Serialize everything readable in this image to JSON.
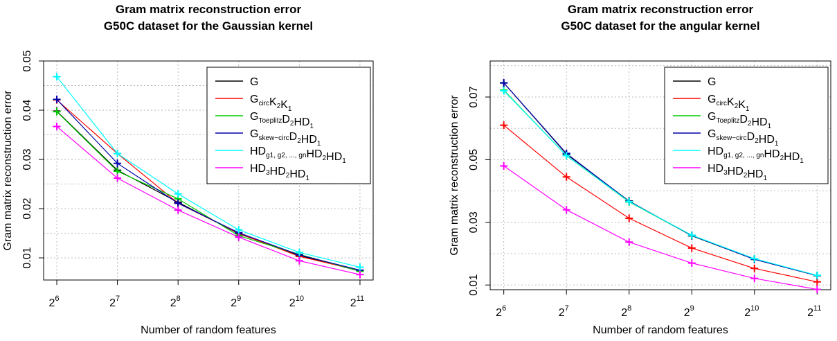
{
  "chart_data": [
    {
      "type": "line",
      "title_lines": [
        "Gram matrix reconstruction error",
        "G50C dataset for the Gaussian kernel"
      ],
      "xlabel": "Number of random features",
      "ylabel": "Gram matrix reconstruction error",
      "x": [
        6,
        7,
        8,
        9,
        10,
        11
      ],
      "x_tick_base": "2",
      "x_tick_exponents": [
        "6",
        "7",
        "8",
        "9",
        "10",
        "11"
      ],
      "ylim": [
        0.0055,
        0.05
      ],
      "y_ticks": [
        0.01,
        0.02,
        0.03,
        0.04,
        0.05
      ],
      "y_tick_labels": [
        "0.01",
        "0.02",
        "0.03",
        "0.04",
        "0.05"
      ],
      "grid": true,
      "legend_position": "top-right",
      "series": [
        {
          "legend": [
            [
              "G",
              ""
            ]
          ],
          "color": "#000000",
          "values": [
            0.0398,
            0.0278,
            0.0213,
            0.0149,
            0.0105,
            0.0073
          ]
        },
        {
          "legend": [
            [
              "G",
              "circ"
            ],
            [
              "K",
              "2"
            ],
            [
              "K",
              "1"
            ]
          ],
          "color": "#ff0000",
          "values": [
            0.0421,
            0.0312,
            0.0211,
            0.015,
            0.0103,
            0.0074
          ]
        },
        {
          "legend": [
            [
              "G",
              "Toeplitz"
            ],
            [
              "D",
              "2"
            ],
            [
              "HD",
              "1"
            ]
          ],
          "color": "#00cc00",
          "values": [
            0.0397,
            0.0276,
            0.022,
            0.0145,
            0.0107,
            0.0073
          ]
        },
        {
          "legend": [
            [
              "G",
              "skew−circ"
            ],
            [
              "D",
              "2"
            ],
            [
              "HD",
              "1"
            ]
          ],
          "color": "#0000aa",
          "values": [
            0.0422,
            0.0292,
            0.0211,
            0.0151,
            0.0106,
            0.0075
          ]
        },
        {
          "legend": [
            [
              "HD",
              "g1, g2, ..., gn"
            ],
            [
              "HD",
              "2"
            ],
            [
              "HD",
              "1"
            ]
          ],
          "color": "#00ffff",
          "values": [
            0.0468,
            0.0312,
            0.023,
            0.0157,
            0.0111,
            0.0081
          ]
        },
        {
          "legend": [
            [
              "HD",
              "3"
            ],
            [
              "HD",
              "2"
            ],
            [
              "HD",
              "1"
            ]
          ],
          "color": "#ff00ff",
          "values": [
            0.0367,
            0.0262,
            0.0197,
            0.0142,
            0.0094,
            0.0066
          ]
        }
      ]
    },
    {
      "type": "line",
      "title_lines": [
        "Gram matrix reconstruction error",
        "G50C dataset for the angular kernel"
      ],
      "xlabel": "Number of random features",
      "ylabel": "Gram matrix reconstruction error",
      "x": [
        6,
        7,
        8,
        9,
        10,
        11
      ],
      "x_tick_base": "2",
      "x_tick_exponents": [
        "6",
        "7",
        "8",
        "9",
        "10",
        "11"
      ],
      "ylim": [
        0.0085,
        0.0815
      ],
      "y_ticks": [
        0.01,
        0.03,
        0.05,
        0.07
      ],
      "y_tick_labels": [
        "0.01",
        "0.03",
        "0.05",
        "0.07"
      ],
      "grid": true,
      "legend_position": "top-right",
      "series": [
        {
          "legend": [
            [
              "G",
              ""
            ]
          ],
          "color": "#000000",
          "values": [
            0.0745,
            0.0518,
            0.0368,
            0.0257,
            0.0182,
            0.013
          ]
        },
        {
          "legend": [
            [
              "G",
              "circ"
            ],
            [
              "K",
              "2"
            ],
            [
              "K",
              "1"
            ]
          ],
          "color": "#ff0000",
          "values": [
            0.061,
            0.0445,
            0.0313,
            0.0218,
            0.0153,
            0.011
          ]
        },
        {
          "legend": [
            [
              "G",
              "Toeplitz"
            ],
            [
              "D",
              "2"
            ],
            [
              "HD",
              "1"
            ]
          ],
          "color": "#00cc00",
          "values": [
            0.0722,
            0.0513,
            0.0365,
            0.0258,
            0.0183,
            0.013
          ]
        },
        {
          "legend": [
            [
              "G",
              "skew−circ"
            ],
            [
              "D",
              "2"
            ],
            [
              "HD",
              "1"
            ]
          ],
          "color": "#0000aa",
          "values": [
            0.0745,
            0.052,
            0.0367,
            0.0258,
            0.0182,
            0.013
          ]
        },
        {
          "legend": [
            [
              "HD",
              "g1, g2, ..., gn"
            ],
            [
              "HD",
              "2"
            ],
            [
              "HD",
              "1"
            ]
          ],
          "color": "#00ffff",
          "values": [
            0.072,
            0.0513,
            0.0366,
            0.0259,
            0.0184,
            0.0131
          ]
        },
        {
          "legend": [
            [
              "HD",
              "3"
            ],
            [
              "HD",
              "2"
            ],
            [
              "HD",
              "1"
            ]
          ],
          "color": "#ff00ff",
          "values": [
            0.048,
            0.034,
            0.0237,
            0.017,
            0.0121,
            0.0086
          ]
        }
      ]
    }
  ]
}
